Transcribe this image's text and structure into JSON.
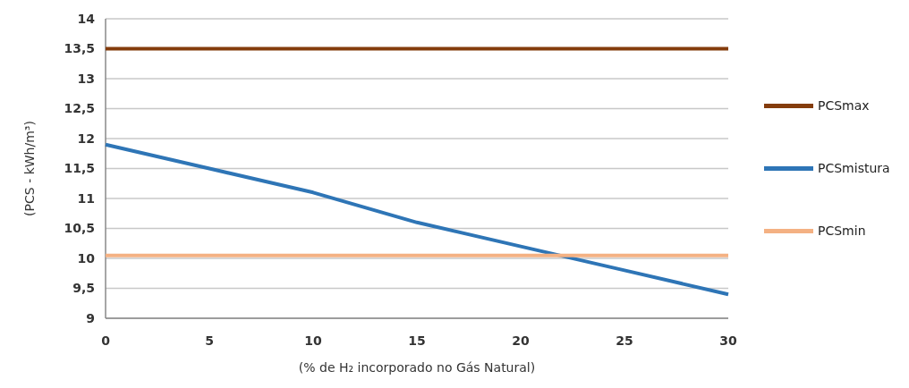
{
  "chart_data": {
    "type": "line",
    "xlabel": "(% de H₂ incorporado no Gás Natural)",
    "ylabel": "(PCS - kWh/m³)",
    "x": [
      0,
      5,
      10,
      15,
      20,
      25,
      30
    ],
    "xlim": [
      0,
      30
    ],
    "xticks": [
      0,
      5,
      10,
      15,
      20,
      25,
      30
    ],
    "ylim": [
      9,
      14
    ],
    "yticks": [
      {
        "value": 9,
        "label": "9"
      },
      {
        "value": 9.5,
        "label": "9,5"
      },
      {
        "value": 10,
        "label": "10"
      },
      {
        "value": 10.5,
        "label": "10,5"
      },
      {
        "value": 11,
        "label": "11"
      },
      {
        "value": 11.5,
        "label": "11,5"
      },
      {
        "value": 12,
        "label": "12"
      },
      {
        "value": 12.5,
        "label": "12,5"
      },
      {
        "value": 13,
        "label": "13"
      },
      {
        "value": 13.5,
        "label": "13,5"
      },
      {
        "value": 14,
        "label": "14"
      }
    ],
    "grid": "y",
    "legend": "right",
    "marker": "none",
    "line_style": "solid",
    "series": [
      {
        "name": "PCSmax",
        "color": "#843c0c",
        "values": [
          13.5,
          13.5,
          13.5,
          13.5,
          13.5,
          13.5,
          13.5
        ]
      },
      {
        "name": "PCSmistura",
        "color": "#2e75b6",
        "values": [
          11.9,
          11.5,
          11.1,
          10.6,
          10.2,
          9.8,
          9.4
        ]
      },
      {
        "name": "PCSmin",
        "color": "#f4b183",
        "values": [
          10.05,
          10.05,
          10.05,
          10.05,
          10.05,
          10.05,
          10.05
        ]
      }
    ]
  }
}
